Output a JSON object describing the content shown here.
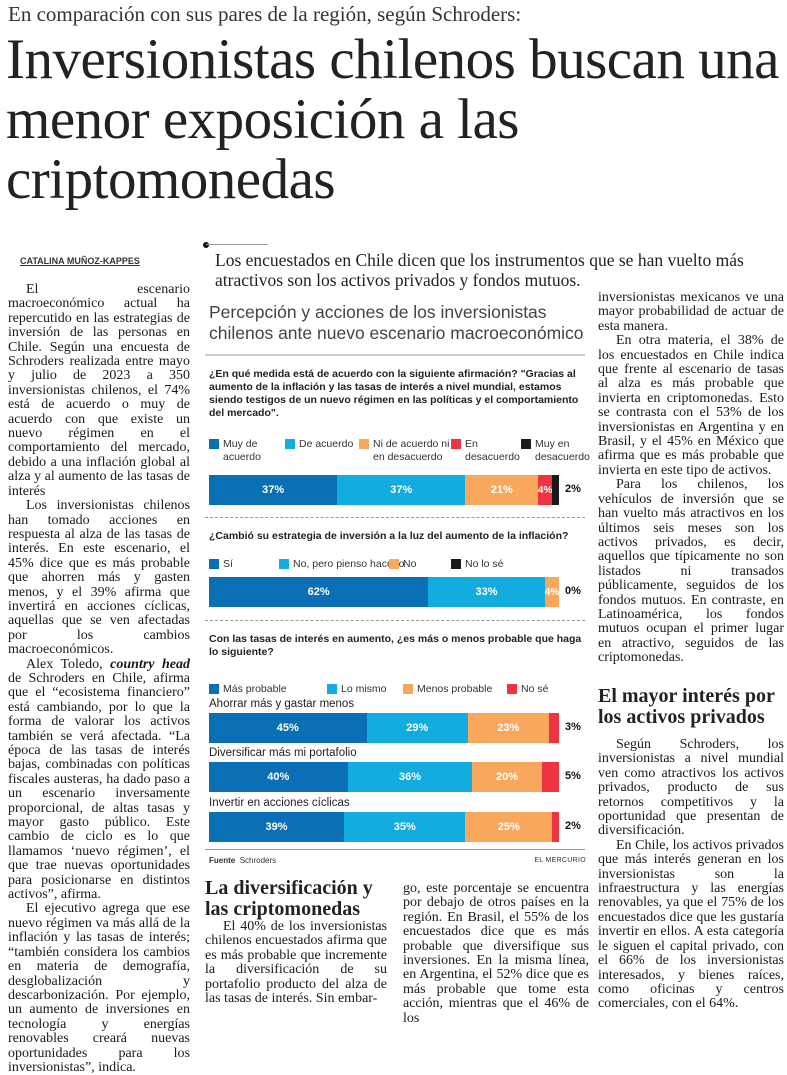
{
  "kicker": "En comparación con sus pares de la región, según Schroders:",
  "headline": "Inversionistas chilenos buscan una menor exposición a las criptomonedas",
  "byline": "CATALINA MUÑOZ-KAPPES",
  "deck": "Los encuestados en Chile dicen que los instrumentos que se han vuelto más atractivos son los activos privados y fondos mutuos.",
  "left_column": [
    "El escenario macroeconómico actual ha repercutido en las estrategias de inversión de las personas en Chile. Según una encuesta de Schroders realizada entre mayo y julio de 2023 a 350 inversionistas chilenos, el 74% está de acuerdo o muy de acuerdo con que existe un nuevo régimen en el comportamiento del mercado, debido a una inflación global al alza y al aumento de las tasas de interés",
    "Los inversionistas chilenos han tomado acciones en respuesta al alza de las tasas de interés. En este escenario, el 45% dice que es más probable que ahorren más y gasten menos, y el 39% afirma que invertirá en acciones cíclicas, aquellas que se ven afectadas por los cambios macroeconómicos.",
    "Schroders en Chile, afirma que el “ecosistema financiero” está cambiando, por lo que la forma de valorar los activos también se verá afectada. “La época de las tasas de interés bajas, combinadas con políticas fiscales austeras, ha dado paso a un escenario inversamente proporcional, de altas tasas y mayor gasto público. Este cambio de ciclo es lo que llamamos ‘nuevo régimen’, el que trae nuevas oportunidades para posicionarse en distintos activos”, afirma.",
    "El ejecutivo agrega que ese nuevo régimen va más allá de la inflación y las tasas de interés; “también considera los cambios en materia de demografía, desglobalización y descarbonización. Por ejemplo, un aumento de inversiones en tecnología y energías renovables creará nuevas oportunidades para los inversionistas”, indica."
  ],
  "quote_person": "Alex Toledo,",
  "quote_role": "country head",
  "quote_de": "de",
  "mid_heading": "La diversificación y las criptomonedas",
  "mid_col1": "El 40% de los inversionistas chilenos encuestados afirma que es más probable que incremente la diversificación de su portafolio producto del alza de las tasas de interés. Sin embar-",
  "mid_col2": "go, este porcentaje se encuentra por debajo de otros países en la región. En Brasil, el 55% de los encuestados dice que es más probable que diversifique sus inversiones. En la misma línea, en Argentina, el 52% dice que es más probable que tome esta acción, mientras que el 46% de los",
  "right_column": [
    "inversionistas mexicanos ve una mayor probabilidad de actuar de esta manera.",
    "En otra materia, el 38% de los encuestados en Chile indica que frente al escenario de tasas al alza es más probable que invierta en criptomonedas. Esto se contrasta con el 53% de los inversionistas en Argentina y en Brasil, y el 45% en México que afirma que es más probable que invierta en este tipo de activos.",
    "Para los chilenos, los vehículos de inversión que se han vuelto más atractivos en los últimos seis meses son los activos privados, es decir, aquellos que típicamente no son listados ni transados públicamente, seguidos de los fondos mutuos. En contraste, en Latinoamérica, los fondos mutuos ocupan el primer lugar en atractivo, seguidos de las criptomonedas."
  ],
  "right_heading": "El mayor interés por los activos privados",
  "right_column2": [
    "Según Schroders, los inversionistas a nivel mundial ven como atractivos los activos privados, producto de sus retornos competitivos y la oportunidad que presentan de diversificación.",
    "En Chile, los activos privados que más interés generan en los inversionistas son la infraestructura y las energías renovables, ya que el 75% de los encuestados dice que les gustaría invertir en ellos. A esta categoría le siguen el capital privado, con el 66% de los inversionistas interesados, y bienes raíces, como oficinas y centros comerciales, con el 64%."
  ],
  "colors": {
    "muy_acuerdo": "#0a6fb4",
    "acuerdo": "#12acdf",
    "neutral": "#f9a75c",
    "desacuerdo": "#ef3340",
    "muy_desacuerdo": "#1a1a1a"
  },
  "chart_data": {
    "type": "bar",
    "title": "Percepción y acciones de los inversionistas chilenos ante nuevo escenario macroeconómico",
    "source_label": "Fuente",
    "source": "Schroders",
    "brand": "EL MERCURIO",
    "charts": [
      {
        "question": "¿En qué medida está de acuerdo con la siguiente afirmación? \"Gracias al aumento de la inflación y las tasas de interés a nivel mundial, estamos siendo testigos de un nuevo régimen en las políticas y el comportamiento del mercado\".",
        "legend": [
          "Muy de acuerdo",
          "De acuerdo",
          "Ni de acuerdo ni en desacuerdo",
          "En desacuerdo",
          "Muy en desacuerdo"
        ],
        "series_colors": [
          "#0a6fb4",
          "#12acdf",
          "#f9a75c",
          "#ef3340",
          "#1a1a1a"
        ],
        "rows": [
          {
            "label": "",
            "values": [
              37,
              37,
              21,
              4,
              2
            ],
            "labels": [
              "37%",
              "37%",
              "21%",
              "4%",
              "2%"
            ]
          }
        ]
      },
      {
        "question": "¿Cambió su estrategia de inversión a la luz del aumento de la inflación?",
        "legend": [
          "Sí",
          "No, pero pienso hacerlo",
          "No",
          "No lo sé"
        ],
        "series_colors": [
          "#0a6fb4",
          "#12acdf",
          "#f9a75c",
          "#1a1a1a"
        ],
        "rows": [
          {
            "label": "",
            "values": [
              62,
              33,
              4,
              0
            ],
            "labels": [
              "62%",
              "33%",
              "4%",
              "0%"
            ]
          }
        ]
      },
      {
        "question": "Con las tasas de interés en aumento, ¿es más o menos probable que haga lo siguiente?",
        "legend": [
          "Más probable",
          "Lo mismo",
          "Menos probable",
          "No sé"
        ],
        "series_colors": [
          "#0a6fb4",
          "#12acdf",
          "#f9a75c",
          "#ef3340"
        ],
        "rows": [
          {
            "label": "Ahorrar más y gastar menos",
            "values": [
              45,
              29,
              23,
              3
            ],
            "labels": [
              "45%",
              "29%",
              "23%",
              "3%"
            ]
          },
          {
            "label": "Diversificar más mi portafolio",
            "values": [
              40,
              36,
              20,
              5
            ],
            "labels": [
              "40%",
              "36%",
              "20%",
              "5%"
            ]
          },
          {
            "label": "Invertir en acciones cíclicas",
            "values": [
              39,
              35,
              25,
              2
            ],
            "labels": [
              "39%",
              "35%",
              "25%",
              "2%"
            ]
          }
        ]
      }
    ]
  }
}
